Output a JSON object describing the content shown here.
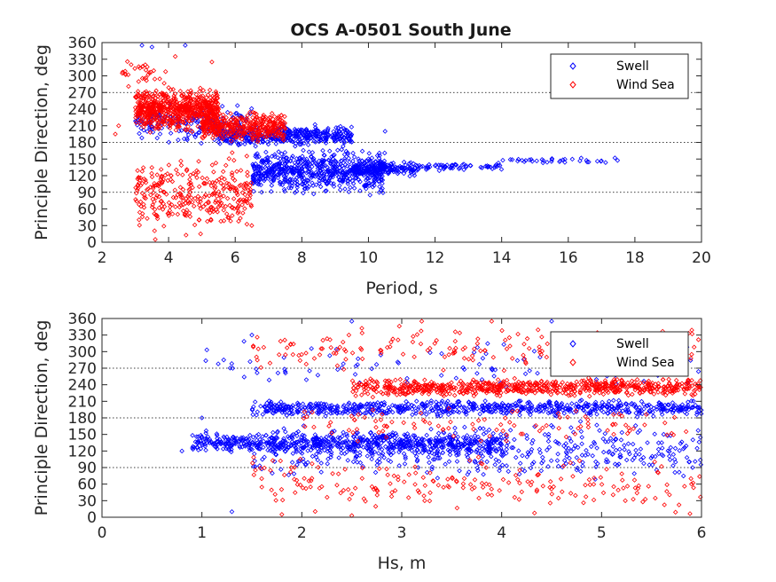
{
  "figure": {
    "title": "OCS A-0501 South June"
  },
  "chart_data": [
    {
      "type": "scatter",
      "xlabel": "Period, s",
      "ylabel": "Principle Direction, deg",
      "xlim": [
        2,
        20
      ],
      "ylim": [
        0,
        360
      ],
      "xticks": [
        "2",
        "4",
        "6",
        "8",
        "10",
        "12",
        "14",
        "16",
        "18",
        "20"
      ],
      "yticks": [
        "0",
        "30",
        "60",
        "90",
        "120",
        "150",
        "180",
        "210",
        "240",
        "270",
        "300",
        "330",
        "360"
      ],
      "reference_lines_y": [
        90,
        180,
        270
      ],
      "legend": {
        "placement": "top-right",
        "entries": [
          "Swell",
          "Wind Sea"
        ]
      },
      "marker": "diamond",
      "series": [
        {
          "name": "Swell",
          "color": "#0000ff",
          "clusters": [
            {
              "x_range": [
                3.0,
                6.5
              ],
              "y_range": [
                170,
                260
              ],
              "count": 170
            },
            {
              "x_range": [
                5.5,
                9.5
              ],
              "y_range": [
                170,
                215
              ],
              "count": 420
            },
            {
              "x_range": [
                6.5,
                10.5
              ],
              "y_range": [
                80,
                175
              ],
              "count": 650
            },
            {
              "x_range": [
                9.5,
                11.5
              ],
              "y_range": [
                115,
                150
              ],
              "count": 160
            },
            {
              "x_range": [
                11.5,
                14.0
              ],
              "y_range": [
                128,
                145
              ],
              "count": 60
            },
            {
              "x_range": [
                14.0,
                17.5
              ],
              "y_range": [
                140,
                155
              ],
              "count": 35
            }
          ],
          "points": [
            [
              3.2,
              355
            ],
            [
              3.5,
              352
            ],
            [
              4.5,
              355
            ],
            [
              10.5,
              200
            ],
            [
              12.0,
              138
            ],
            [
              17.4,
              152
            ]
          ]
        },
        {
          "name": "Wind Sea",
          "color": "#ff0000",
          "clusters": [
            {
              "x_range": [
                3.0,
                5.5
              ],
              "y_range": [
                195,
                285
              ],
              "count": 650
            },
            {
              "x_range": [
                5.0,
                7.5
              ],
              "y_range": [
                175,
                240
              ],
              "count": 380
            },
            {
              "x_range": [
                3.0,
                6.5
              ],
              "y_range": [
                0,
                170
              ],
              "count": 320
            },
            {
              "x_range": [
                2.5,
                4.0
              ],
              "y_range": [
                270,
                340
              ],
              "count": 30
            }
          ],
          "points": [
            [
              2.4,
              195
            ],
            [
              2.5,
              210
            ],
            [
              3.3,
              320
            ],
            [
              4.2,
              335
            ],
            [
              5.3,
              325
            ],
            [
              3.6,
              5
            ]
          ]
        }
      ]
    },
    {
      "type": "scatter",
      "xlabel": "Hs, m",
      "ylabel": "Principle Direction, deg",
      "xlim": [
        0,
        6
      ],
      "ylim": [
        0,
        360
      ],
      "xticks": [
        "0",
        "1",
        "2",
        "3",
        "4",
        "5",
        "6"
      ],
      "yticks": [
        "0",
        "30",
        "60",
        "90",
        "120",
        "150",
        "180",
        "210",
        "240",
        "270",
        "300",
        "330",
        "360"
      ],
      "reference_lines_y": [
        90,
        180,
        270
      ],
      "legend": {
        "placement": "top-right",
        "entries": [
          "Swell",
          "Wind Sea"
        ]
      },
      "marker": "diamond",
      "series": [
        {
          "name": "Swell",
          "color": "#0000ff",
          "clusters": [
            {
              "x_range": [
                1.5,
                6.0
              ],
              "y_range": [
                180,
                215
              ],
              "count": 700
            },
            {
              "x_range": [
                0.9,
                4.0
              ],
              "y_range": [
                110,
                160
              ],
              "count": 650
            },
            {
              "x_range": [
                1.5,
                6.0
              ],
              "y_range": [
                60,
                180
              ],
              "count": 450
            },
            {
              "x_range": [
                1.0,
                6.0
              ],
              "y_range": [
                215,
                340
              ],
              "count": 90
            }
          ],
          "points": [
            [
              0.8,
              120
            ],
            [
              1.0,
              180
            ],
            [
              1.3,
              10
            ],
            [
              1.5,
              330
            ],
            [
              2.5,
              355
            ],
            [
              4.5,
              355
            ]
          ]
        },
        {
          "name": "Wind Sea",
          "color": "#ff0000",
          "clusters": [
            {
              "x_range": [
                2.5,
                6.0
              ],
              "y_range": [
                215,
                255
              ],
              "count": 700
            },
            {
              "x_range": [
                1.5,
                6.0
              ],
              "y_range": [
                0,
                120
              ],
              "count": 200
            },
            {
              "x_range": [
                1.5,
                6.0
              ],
              "y_range": [
                255,
                360
              ],
              "count": 180
            },
            {
              "x_range": [
                2.0,
                6.0
              ],
              "y_range": [
                120,
                215
              ],
              "count": 100
            }
          ],
          "points": [
            [
              1.8,
              5
            ],
            [
              2.5,
              3
            ],
            [
              3.2,
              355
            ],
            [
              3.9,
              355
            ],
            [
              5.9,
              60
            ]
          ]
        }
      ]
    }
  ]
}
